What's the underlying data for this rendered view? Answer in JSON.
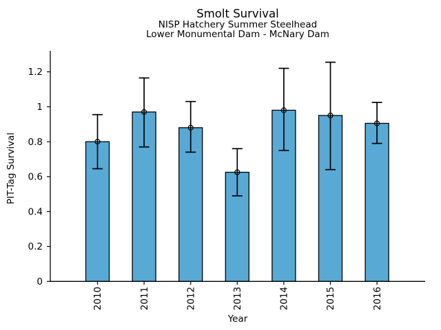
{
  "figure": {
    "title": "Smolt Survival",
    "subtitle1": "NISP Hatchery Summer Steelhead",
    "subtitle2": "Lower Monumental Dam - McNary Dam"
  },
  "chart_data": {
    "type": "bar",
    "title": "Smolt Survival",
    "subtitle": [
      "NISP Hatchery Summer Steelhead",
      "Lower Monumental Dam - McNary Dam"
    ],
    "categories": [
      "2010",
      "2011",
      "2012",
      "2013",
      "2014",
      "2015",
      "2016"
    ],
    "values": [
      0.8,
      0.97,
      0.88,
      0.625,
      0.98,
      0.95,
      0.905
    ],
    "error_low": [
      0.645,
      0.77,
      0.74,
      0.49,
      0.75,
      0.64,
      0.79
    ],
    "error_high": [
      0.955,
      1.165,
      1.03,
      0.76,
      1.22,
      1.255,
      1.025
    ],
    "xlabel": "Year",
    "ylabel": "PIT-Tag Survival",
    "ylim": [
      0,
      1.32
    ],
    "ytick_values": [
      0,
      0.2,
      0.4,
      0.6,
      0.8,
      1,
      1.2
    ],
    "ytick_labels": [
      "0",
      "0.2",
      "0.4",
      "0.6",
      "0.8",
      "1",
      "1.2"
    ],
    "grid": false,
    "legend_position": "none",
    "marker": "open-circle",
    "bar_color": "#59A9D5",
    "bar_edge_color": "#000000",
    "error_color": "#000000",
    "axis_color": "#000000"
  }
}
